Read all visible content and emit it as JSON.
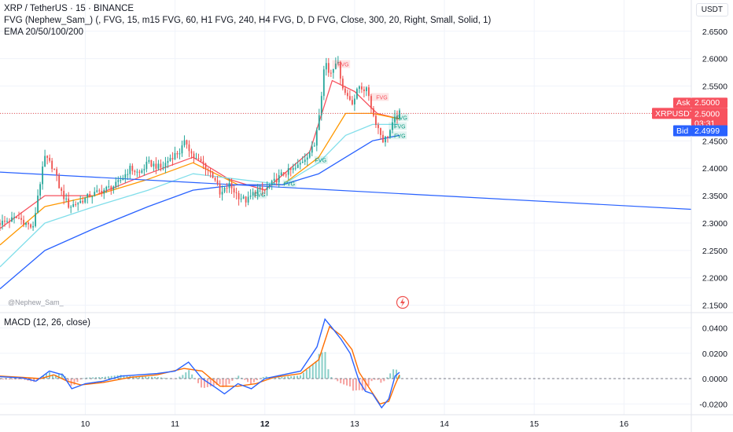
{
  "header": {
    "symbol_line": "XRP / TetherUS · 15 · BINANCE",
    "indicator_line": "FVG (Nephew_Sam_) (, FVG, 15, m15 FVG, 60, H1 FVG, 240, H4 FVG, D, D FVG, Close, 300, 20, Right, Small, Solid, 1)",
    "ema_line": "EMA 20/50/100/200",
    "watermark": "@Nephew_Sam_",
    "scale_button": "USDT"
  },
  "price_badges": {
    "ask_label": "Ask",
    "ask_value": "2.5000",
    "symbol_label": "XRPUSDT",
    "last_value": "2.5000",
    "countdown": "03:31",
    "bid_label": "Bid",
    "bid_value": "2.4999"
  },
  "colors": {
    "up": "#26a69a",
    "down": "#ef5350",
    "ema_fast": "#f7525f",
    "ema_mid": "#ff9800",
    "ema_slow": "#80deea",
    "ema_200": "#2962ff",
    "trendline": "#2962ff",
    "macd_line": "#2962ff",
    "signal_line": "#ff6d00",
    "fvg_label": "#089981"
  },
  "chart_data": [
    {
      "type": "candlestick",
      "title": "XRP / TetherUS · 15 · BINANCE",
      "x_axis_labels": [
        "10",
        "11",
        "12",
        "13",
        "14",
        "15",
        "16"
      ],
      "y_ticks": [
        "2.6500",
        "2.6000",
        "2.5500",
        "2.5000",
        "2.4500",
        "2.4000",
        "2.3500",
        "2.3000",
        "2.2500",
        "2.2000",
        "2.1500"
      ],
      "ylim": [
        2.138,
        2.707
      ],
      "xlim": [
        9.05,
        16.75
      ],
      "price_path": [
        [
          9.05,
          2.3
        ],
        [
          9.25,
          2.31
        ],
        [
          9.42,
          2.29
        ],
        [
          9.47,
          2.35
        ],
        [
          9.55,
          2.42
        ],
        [
          9.65,
          2.4
        ],
        [
          9.72,
          2.36
        ],
        [
          9.82,
          2.33
        ],
        [
          9.95,
          2.34
        ],
        [
          10.05,
          2.35
        ],
        [
          10.2,
          2.36
        ],
        [
          10.35,
          2.37
        ],
        [
          10.5,
          2.4
        ],
        [
          10.6,
          2.39
        ],
        [
          10.7,
          2.41
        ],
        [
          10.85,
          2.4
        ],
        [
          10.95,
          2.42
        ],
        [
          11.05,
          2.43
        ],
        [
          11.12,
          2.45
        ],
        [
          11.2,
          2.42
        ],
        [
          11.3,
          2.41
        ],
        [
          11.45,
          2.38
        ],
        [
          11.5,
          2.35
        ],
        [
          11.6,
          2.37
        ],
        [
          11.7,
          2.35
        ],
        [
          11.8,
          2.34
        ],
        [
          11.9,
          2.36
        ],
        [
          12.0,
          2.36
        ],
        [
          12.2,
          2.39
        ],
        [
          12.35,
          2.4
        ],
        [
          12.45,
          2.42
        ],
        [
          12.55,
          2.44
        ],
        [
          12.62,
          2.52
        ],
        [
          12.67,
          2.6
        ],
        [
          12.72,
          2.57
        ],
        [
          12.8,
          2.6
        ],
        [
          12.88,
          2.54
        ],
        [
          12.98,
          2.52
        ],
        [
          13.05,
          2.55
        ],
        [
          13.15,
          2.54
        ],
        [
          13.2,
          2.5
        ],
        [
          13.27,
          2.47
        ],
        [
          13.32,
          2.45
        ],
        [
          13.37,
          2.46
        ],
        [
          13.45,
          2.49
        ],
        [
          13.5,
          2.5
        ]
      ],
      "series": [
        {
          "name": "EMA 20",
          "points": [
            [
              9.05,
              2.29
            ],
            [
              9.55,
              2.35
            ],
            [
              10.1,
              2.35
            ],
            [
              10.7,
              2.39
            ],
            [
              11.2,
              2.42
            ],
            [
              11.6,
              2.38
            ],
            [
              12.0,
              2.36
            ],
            [
              12.5,
              2.43
            ],
            [
              12.75,
              2.56
            ],
            [
              13.0,
              2.54
            ],
            [
              13.25,
              2.5
            ],
            [
              13.5,
              2.49
            ]
          ]
        },
        {
          "name": "EMA 50",
          "points": [
            [
              9.05,
              2.26
            ],
            [
              9.55,
              2.33
            ],
            [
              10.1,
              2.35
            ],
            [
              10.7,
              2.38
            ],
            [
              11.2,
              2.41
            ],
            [
              11.7,
              2.37
            ],
            [
              12.2,
              2.37
            ],
            [
              12.6,
              2.42
            ],
            [
              12.9,
              2.5
            ],
            [
              13.2,
              2.5
            ],
            [
              13.5,
              2.49
            ]
          ]
        },
        {
          "name": "EMA 100",
          "points": [
            [
              9.05,
              2.22
            ],
            [
              9.55,
              2.3
            ],
            [
              10.1,
              2.33
            ],
            [
              10.7,
              2.36
            ],
            [
              11.2,
              2.39
            ],
            [
              11.7,
              2.38
            ],
            [
              12.2,
              2.37
            ],
            [
              12.6,
              2.41
            ],
            [
              12.9,
              2.46
            ],
            [
              13.2,
              2.48
            ],
            [
              13.5,
              2.48
            ]
          ]
        },
        {
          "name": "EMA 200",
          "points": [
            [
              9.05,
              2.18
            ],
            [
              9.55,
              2.25
            ],
            [
              10.1,
              2.29
            ],
            [
              10.7,
              2.33
            ],
            [
              11.2,
              2.36
            ],
            [
              11.7,
              2.37
            ],
            [
              12.2,
              2.37
            ],
            [
              12.6,
              2.39
            ],
            [
              12.9,
              2.42
            ],
            [
              13.2,
              2.45
            ],
            [
              13.5,
              2.46
            ]
          ]
        },
        {
          "name": "Trendline",
          "points": [
            [
              9.05,
              2.393
            ],
            [
              16.75,
              2.325
            ]
          ]
        }
      ],
      "fvg_zones": [
        {
          "label": "FVG",
          "kind": "bear",
          "x1": 12.75,
          "x2": 12.95,
          "y": 2.59
        },
        {
          "label": "FVG",
          "kind": "bear",
          "x1": 13.18,
          "x2": 13.38,
          "y": 2.53
        },
        {
          "label": "FVG",
          "kind": "bull",
          "x1": 13.42,
          "x2": 13.6,
          "y": 2.493
        },
        {
          "label": "FVG",
          "kind": "bull",
          "x1": 13.38,
          "x2": 13.58,
          "y": 2.477
        },
        {
          "label": "FVG",
          "kind": "bull",
          "x1": 13.38,
          "x2": 13.58,
          "y": 2.46
        },
        {
          "label": "FVG",
          "kind": "bull",
          "x1": 12.55,
          "x2": 12.7,
          "y": 2.415
        },
        {
          "label": "FVG",
          "kind": "bull",
          "x1": 12.2,
          "x2": 12.35,
          "y": 2.372
        },
        {
          "label": "FVG",
          "kind": "bull",
          "x1": 11.88,
          "x2": 12.02,
          "y": 2.352
        }
      ]
    },
    {
      "type": "line",
      "title": "MACD (12, 26, close)",
      "y_ticks": [
        "0.0400",
        "0.0200",
        "0.0000",
        "-0.0200"
      ],
      "ylim": [
        -0.0285,
        0.0515
      ],
      "zero": 0,
      "series": [
        {
          "name": "MACD",
          "points": [
            [
              9.05,
              0.0015
            ],
            [
              9.3,
              0.0005
            ],
            [
              9.45,
              -0.002
            ],
            [
              9.6,
              0.006
            ],
            [
              9.75,
              0.003
            ],
            [
              9.85,
              -0.008
            ],
            [
              10.0,
              -0.004
            ],
            [
              10.2,
              -0.002
            ],
            [
              10.4,
              0.002
            ],
            [
              10.6,
              0.003
            ],
            [
              10.8,
              0.004
            ],
            [
              11.0,
              0.006
            ],
            [
              11.15,
              0.013
            ],
            [
              11.3,
              0.0
            ],
            [
              11.45,
              -0.007
            ],
            [
              11.55,
              -0.012
            ],
            [
              11.7,
              -0.004
            ],
            [
              11.85,
              -0.008
            ],
            [
              12.0,
              0.0
            ],
            [
              12.2,
              0.003
            ],
            [
              12.4,
              0.006
            ],
            [
              12.58,
              0.025
            ],
            [
              12.67,
              0.047
            ],
            [
              12.75,
              0.04
            ],
            [
              12.85,
              0.031
            ],
            [
              12.95,
              0.02
            ],
            [
              13.05,
              -0.002
            ],
            [
              13.12,
              -0.01
            ],
            [
              13.2,
              -0.012
            ],
            [
              13.3,
              -0.023
            ],
            [
              13.38,
              -0.016
            ],
            [
              13.45,
              0.002
            ],
            [
              13.5,
              0.005
            ]
          ]
        },
        {
          "name": "Signal",
          "points": [
            [
              9.05,
              0.002
            ],
            [
              9.3,
              0.001
            ],
            [
              9.5,
              0.0
            ],
            [
              9.65,
              0.003
            ],
            [
              9.8,
              -0.002
            ],
            [
              9.95,
              -0.005
            ],
            [
              10.2,
              -0.003
            ],
            [
              10.5,
              0.001
            ],
            [
              10.8,
              0.003
            ],
            [
              11.1,
              0.008
            ],
            [
              11.3,
              0.006
            ],
            [
              11.5,
              -0.006
            ],
            [
              11.7,
              -0.006
            ],
            [
              11.9,
              -0.004
            ],
            [
              12.1,
              0.001
            ],
            [
              12.4,
              0.004
            ],
            [
              12.6,
              0.015
            ],
            [
              12.72,
              0.041
            ],
            [
              12.85,
              0.034
            ],
            [
              12.97,
              0.023
            ],
            [
              13.05,
              0.005
            ],
            [
              13.15,
              -0.006
            ],
            [
              13.28,
              -0.02
            ],
            [
              13.38,
              -0.018
            ],
            [
              13.45,
              -0.005
            ],
            [
              13.5,
              0.003
            ]
          ]
        }
      ]
    }
  ]
}
